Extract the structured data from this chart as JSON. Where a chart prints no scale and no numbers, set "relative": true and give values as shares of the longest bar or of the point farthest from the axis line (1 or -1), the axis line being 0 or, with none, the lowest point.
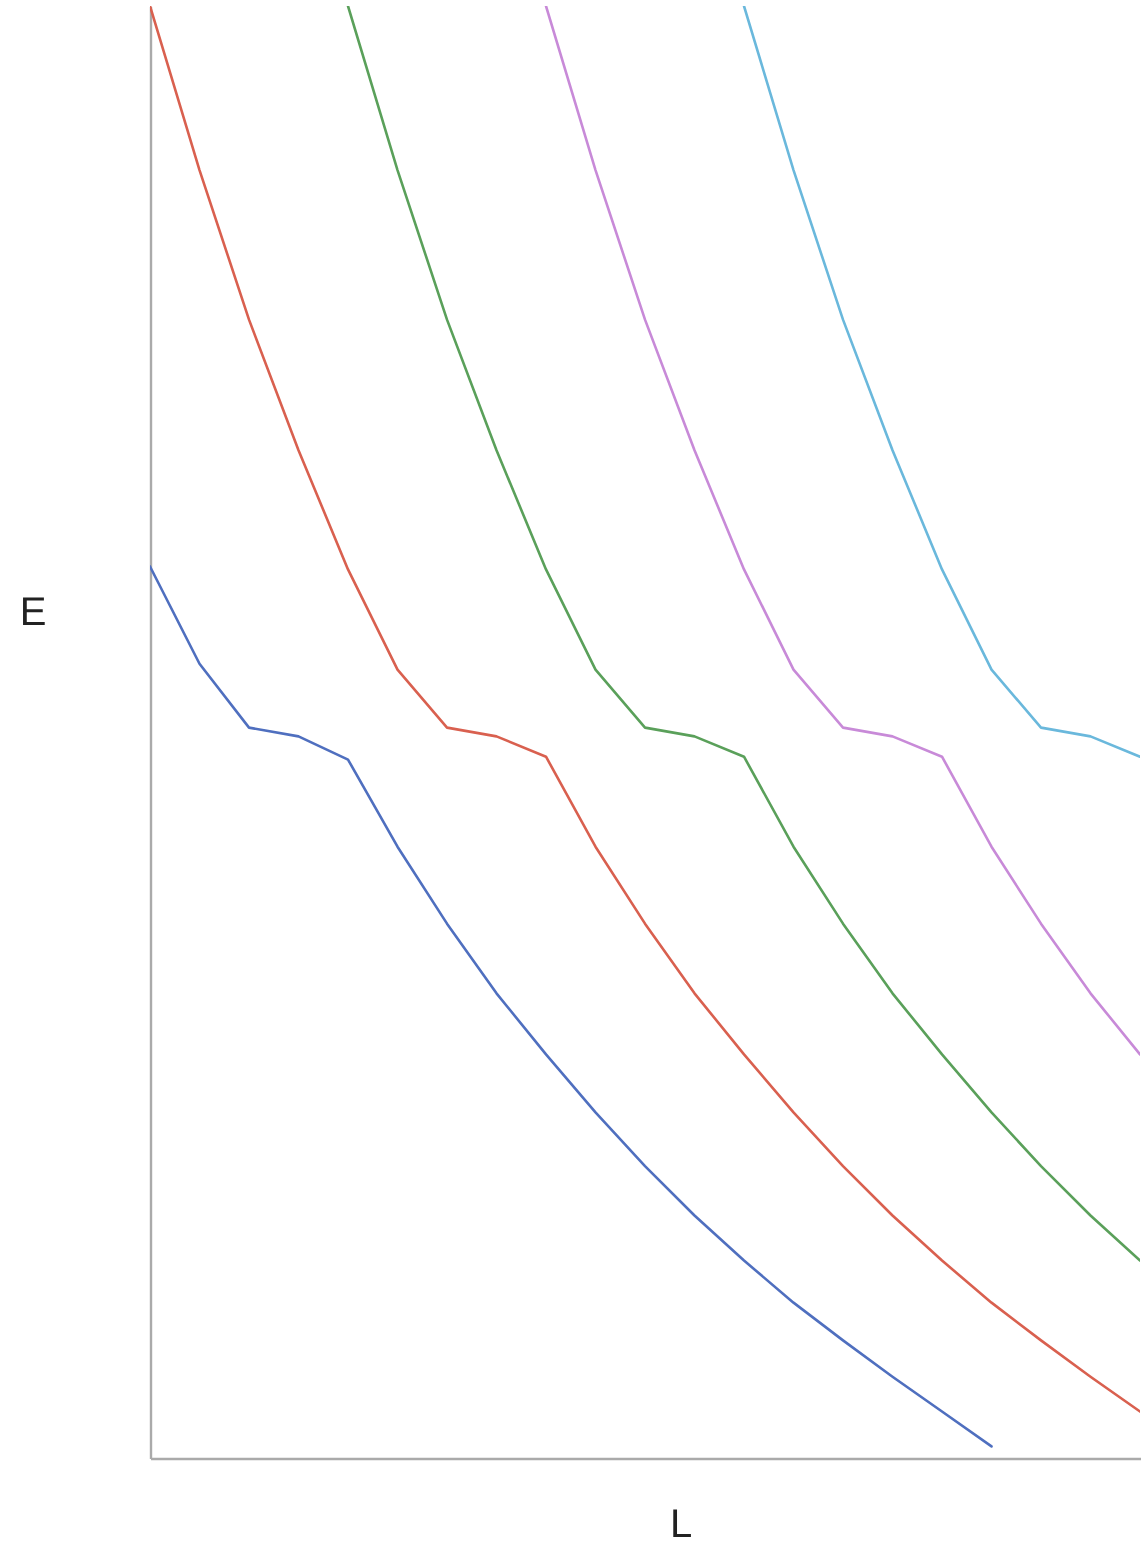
{
  "chart_data": {
    "type": "line",
    "xlabel": "L",
    "ylabel": "E",
    "relative": true,
    "grid": false,
    "marker": "none",
    "line_style": "solid",
    "categories": [
      null,
      null,
      null,
      null,
      null,
      null,
      null,
      null,
      null,
      null,
      null,
      null,
      null,
      null,
      null,
      null,
      null,
      null,
      null,
      null,
      null
    ],
    "series": [
      {
        "color": "#4f6fbf",
        "values": [
          0.614,
          0.547,
          0.503,
          0.497,
          0.481,
          0.421,
          0.368,
          0.32,
          0.278,
          0.238,
          0.201,
          0.167,
          0.136,
          0.107,
          0.081,
          0.056,
          0.032,
          0.008,
          null,
          null,
          null
        ]
      },
      {
        "color": "#d9604f",
        "values": [
          1.0,
          0.887,
          0.784,
          0.694,
          0.612,
          0.543,
          0.503,
          0.497,
          0.483,
          0.421,
          0.368,
          0.32,
          0.278,
          0.238,
          0.201,
          0.167,
          0.136,
          0.107,
          0.081,
          0.056,
          0.032
        ]
      },
      {
        "color": "#5aa05a",
        "values": [
          null,
          null,
          null,
          null,
          1.0,
          0.887,
          0.784,
          0.694,
          0.612,
          0.543,
          0.503,
          0.497,
          0.483,
          0.421,
          0.368,
          0.32,
          0.278,
          0.238,
          0.201,
          0.167,
          0.136
        ]
      },
      {
        "color": "#c88ad8",
        "values": [
          null,
          null,
          null,
          null,
          null,
          null,
          null,
          null,
          1.0,
          0.887,
          0.784,
          0.694,
          0.612,
          0.543,
          0.503,
          0.497,
          0.483,
          0.421,
          0.368,
          0.32,
          0.278
        ]
      },
      {
        "color": "#6ab8dc",
        "values": [
          null,
          null,
          null,
          null,
          null,
          null,
          null,
          null,
          null,
          null,
          null,
          null,
          1.0,
          0.887,
          0.784,
          0.694,
          0.612,
          0.543,
          0.503,
          0.497,
          0.483
        ]
      }
    ]
  }
}
